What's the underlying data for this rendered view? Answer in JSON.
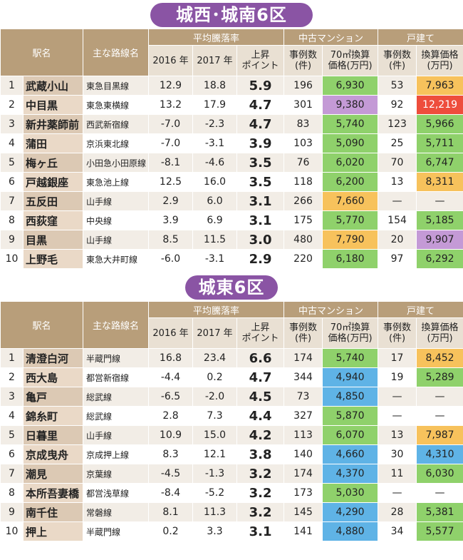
{
  "headers": {
    "station": "駅名",
    "line": "主な路線名",
    "avg_change": "平均騰落率",
    "y2016": "2016 年",
    "y2017": "2017 年",
    "rise_line1": "上昇",
    "rise_line2": "ポイント",
    "mansion": "中古マンション",
    "house": "戸建て",
    "cases_line1": "事例数",
    "cases_line2": "(件)",
    "m70_line1": "70㎡換算",
    "m70_line2": "価格(万円)",
    "h_cases_line1": "事例数",
    "h_cases_line2": "(件)",
    "h_price_line1": "換算価格",
    "h_price_line2": "(万円)"
  },
  "sections": [
    {
      "title": "城西･城南6区",
      "rows": [
        {
          "no": "1",
          "station": "武蔵小山",
          "line": "東急目黒線",
          "y2016": "12.9",
          "y2017": "18.8",
          "rise": "5.9",
          "m_cases": "196",
          "m_price": "6,930",
          "m_color": "green",
          "h_cases": "53",
          "h_price": "7,963",
          "h_color": "orange"
        },
        {
          "no": "2",
          "station": "中目黒",
          "line": "東急東横線",
          "y2016": "13.2",
          "y2017": "17.9",
          "rise": "4.7",
          "m_cases": "301",
          "m_price": "9,380",
          "m_color": "purple",
          "h_cases": "92",
          "h_price": "12,219",
          "h_color": "red"
        },
        {
          "no": "3",
          "station": "新井薬師前",
          "line": "西武新宿線",
          "y2016": "-7.0",
          "y2017": "-2.3",
          "rise": "4.7",
          "m_cases": "83",
          "m_price": "5,740",
          "m_color": "green",
          "h_cases": "123",
          "h_price": "5,966",
          "h_color": "green"
        },
        {
          "no": "4",
          "station": "蒲田",
          "line": "京浜東北線",
          "y2016": "-7.0",
          "y2017": "-3.1",
          "rise": "3.9",
          "m_cases": "103",
          "m_price": "5,090",
          "m_color": "green",
          "h_cases": "25",
          "h_price": "5,711",
          "h_color": "green"
        },
        {
          "no": "5",
          "station": "梅ヶ丘",
          "line": "小田急小田原線",
          "y2016": "-8.1",
          "y2017": "-4.6",
          "rise": "3.5",
          "m_cases": "76",
          "m_price": "6,020",
          "m_color": "green",
          "h_cases": "70",
          "h_price": "6,747",
          "h_color": "green"
        },
        {
          "no": "6",
          "station": "戸越銀座",
          "line": "東急池上線",
          "y2016": "12.5",
          "y2017": "16.0",
          "rise": "3.5",
          "m_cases": "118",
          "m_price": "6,200",
          "m_color": "green",
          "h_cases": "13",
          "h_price": "8,311",
          "h_color": "orange"
        },
        {
          "no": "7",
          "station": "五反田",
          "line": "山手線",
          "y2016": "2.9",
          "y2017": "6.0",
          "rise": "3.1",
          "m_cases": "266",
          "m_price": "7,660",
          "m_color": "orange",
          "h_cases": "—",
          "h_price": "—",
          "h_color": ""
        },
        {
          "no": "8",
          "station": "西荻窪",
          "line": "中央線",
          "y2016": "3.9",
          "y2017": "6.9",
          "rise": "3.1",
          "m_cases": "175",
          "m_price": "5,770",
          "m_color": "green",
          "h_cases": "154",
          "h_price": "5,185",
          "h_color": "green"
        },
        {
          "no": "9",
          "station": "目黒",
          "line": "山手線",
          "y2016": "8.5",
          "y2017": "11.5",
          "rise": "3.0",
          "m_cases": "480",
          "m_price": "7,790",
          "m_color": "orange",
          "h_cases": "20",
          "h_price": "9,907",
          "h_color": "purple"
        },
        {
          "no": "10",
          "station": "上野毛",
          "line": "東急大井町線",
          "y2016": "-6.0",
          "y2017": "-3.1",
          "rise": "2.9",
          "m_cases": "220",
          "m_price": "6,180",
          "m_color": "green",
          "h_cases": "97",
          "h_price": "6,292",
          "h_color": "green"
        }
      ]
    },
    {
      "title": "城東6区",
      "rows": [
        {
          "no": "1",
          "station": "清澄白河",
          "line": "半蔵門線",
          "y2016": "16.8",
          "y2017": "23.4",
          "rise": "6.6",
          "m_cases": "174",
          "m_price": "5,740",
          "m_color": "green",
          "h_cases": "17",
          "h_price": "8,452",
          "h_color": "orange"
        },
        {
          "no": "2",
          "station": "西大島",
          "line": "都営新宿線",
          "y2016": "-4.4",
          "y2017": "0.2",
          "rise": "4.7",
          "m_cases": "344",
          "m_price": "4,940",
          "m_color": "blue",
          "h_cases": "19",
          "h_price": "5,289",
          "h_color": "green"
        },
        {
          "no": "3",
          "station": "亀戸",
          "line": "総武線",
          "y2016": "-6.5",
          "y2017": "-2.0",
          "rise": "4.5",
          "m_cases": "73",
          "m_price": "4,850",
          "m_color": "blue",
          "h_cases": "—",
          "h_price": "—",
          "h_color": ""
        },
        {
          "no": "4",
          "station": "錦糸町",
          "line": "総武線",
          "y2016": "2.8",
          "y2017": "7.3",
          "rise": "4.4",
          "m_cases": "327",
          "m_price": "5,870",
          "m_color": "green",
          "h_cases": "—",
          "h_price": "—",
          "h_color": ""
        },
        {
          "no": "5",
          "station": "日暮里",
          "line": "山手線",
          "y2016": "10.9",
          "y2017": "15.0",
          "rise": "4.2",
          "m_cases": "113",
          "m_price": "6,070",
          "m_color": "green",
          "h_cases": "13",
          "h_price": "7,987",
          "h_color": "orange"
        },
        {
          "no": "6",
          "station": "京成曳舟",
          "line": "京成押上線",
          "y2016": "8.3",
          "y2017": "12.1",
          "rise": "3.8",
          "m_cases": "140",
          "m_price": "4,660",
          "m_color": "blue",
          "h_cases": "30",
          "h_price": "4,310",
          "h_color": "blue"
        },
        {
          "no": "7",
          "station": "潮見",
          "line": "京葉線",
          "y2016": "-4.5",
          "y2017": "-1.3",
          "rise": "3.2",
          "m_cases": "174",
          "m_price": "4,370",
          "m_color": "blue",
          "h_cases": "11",
          "h_price": "6,030",
          "h_color": "green"
        },
        {
          "no": "8",
          "station": "本所吾妻橋",
          "line": "都営浅草線",
          "y2016": "-8.4",
          "y2017": "-5.2",
          "rise": "3.2",
          "m_cases": "173",
          "m_price": "5,030",
          "m_color": "green",
          "h_cases": "—",
          "h_price": "—",
          "h_color": ""
        },
        {
          "no": "9",
          "station": "南千住",
          "line": "常磐線",
          "y2016": "8.1",
          "y2017": "11.3",
          "rise": "3.2",
          "m_cases": "145",
          "m_price": "4,290",
          "m_color": "blue",
          "h_cases": "28",
          "h_price": "5,381",
          "h_color": "green"
        },
        {
          "no": "10",
          "station": "押上",
          "line": "半蔵門線",
          "y2016": "0.2",
          "y2017": "3.3",
          "rise": "3.1",
          "m_cases": "141",
          "m_price": "4,880",
          "m_color": "blue",
          "h_cases": "34",
          "h_price": "5,577",
          "h_color": "green"
        }
      ]
    }
  ]
}
